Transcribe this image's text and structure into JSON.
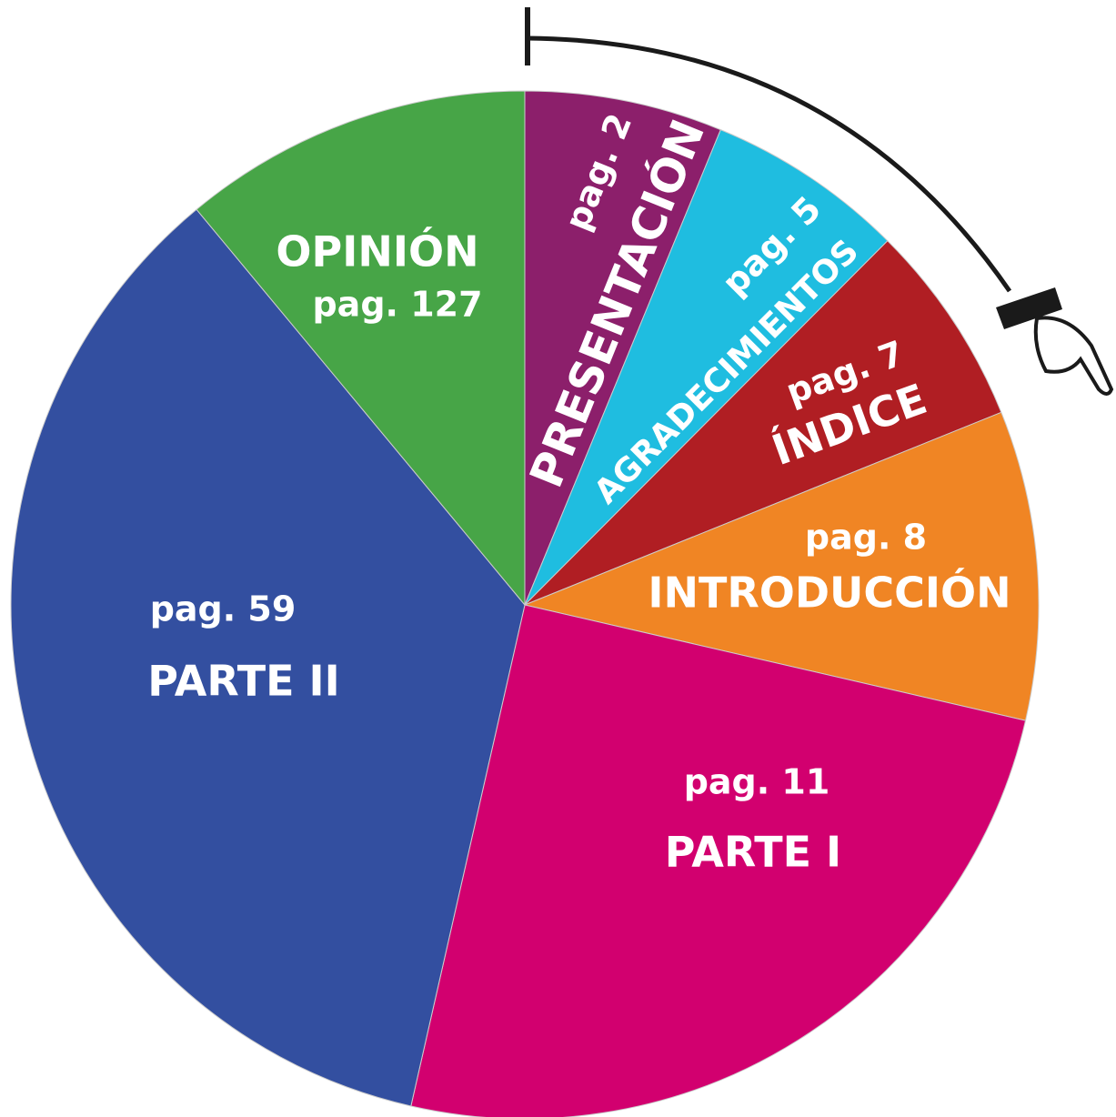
{
  "sections": [
    {
      "title": "PRESENTACIÓN",
      "page": "pag. 2"
    },
    {
      "title": "AGRADECIMIENTOS",
      "page": "pag. 5"
    },
    {
      "title": "ÍNDICE",
      "page": "pag. 7"
    },
    {
      "title": "INTRODUCCIÓN",
      "page": "pag. 8"
    },
    {
      "title": "PARTE I",
      "page": "pag. 11"
    },
    {
      "title": "PARTE II",
      "page": "pag. 59"
    },
    {
      "title": "OPINIÓN",
      "page": "pag. 127"
    }
  ]
}
